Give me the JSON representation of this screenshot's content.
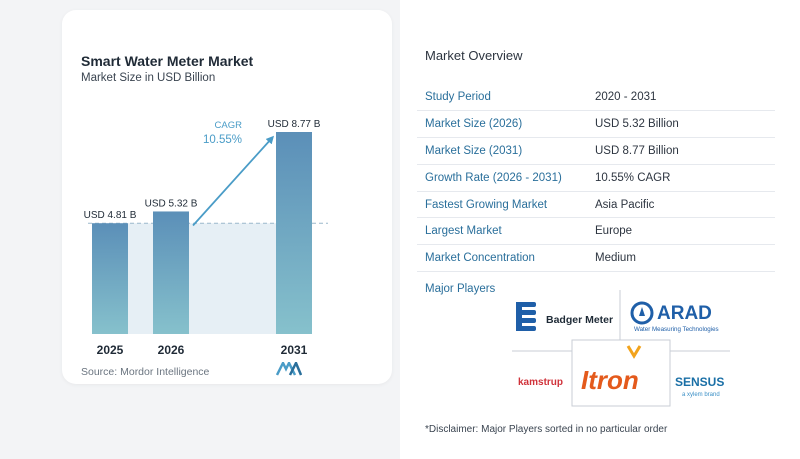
{
  "chart": {
    "title": "Smart Water Meter Market",
    "subtitle": "Market Size in USD Billion",
    "source": "Source:  Mordor Intelligence",
    "cagr_label": "CAGR",
    "cagr_value": "10.55%"
  },
  "chart_data": {
    "type": "bar",
    "title": "Smart Water Meter Market",
    "subtitle": "Market Size in USD Billion",
    "categories": [
      "2025",
      "2026",
      "2031"
    ],
    "values": [
      4.81,
      5.32,
      8.77
    ],
    "data_labels": [
      "USD 4.81 B",
      "USD 5.32 B",
      "USD 8.77 B"
    ],
    "ylim": [
      0,
      8.77
    ],
    "grid": false,
    "annotation": {
      "label": "CAGR",
      "value": "10.55%"
    }
  },
  "overview": {
    "title": "Market Overview",
    "rows": [
      {
        "key": "Study Period",
        "value": "2020 - 2031"
      },
      {
        "key": "Market Size (2026)",
        "value": "USD 5.32 Billion"
      },
      {
        "key": "Market Size (2031)",
        "value": "USD 8.77 Billion"
      },
      {
        "key": "Growth Rate (2026 - 2031)",
        "value": "10.55% CAGR"
      },
      {
        "key": "Fastest Growing Market",
        "value": "Asia Pacific"
      },
      {
        "key": "Largest Market",
        "value": "Europe"
      },
      {
        "key": "Market Concentration",
        "value": "Medium"
      }
    ]
  },
  "players": {
    "title": "Major Players",
    "logos": [
      {
        "name": "Badger Meter"
      },
      {
        "name": "ARAD",
        "tagline": "Water Measuring Technologies"
      },
      {
        "name": "kamstrup"
      },
      {
        "name": "Itron"
      },
      {
        "name": "SENSUS",
        "tagline": "a xylem brand"
      }
    ]
  },
  "disclaimer": "*Disclaimer: Major Players sorted in no particular order",
  "colors": {
    "bar_top": "#5b8fb8",
    "bar_bottom": "#86c1cc",
    "band": "#e6eff5",
    "accent": "#2a6f9b",
    "cagr": "#4a9cc7"
  }
}
